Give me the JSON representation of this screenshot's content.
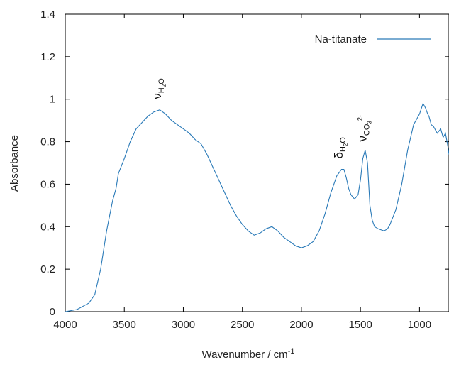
{
  "chart_data": {
    "type": "line",
    "xlabel": "Wavenumber / cm",
    "xlabel_sup": "-1",
    "ylabel": "Absorbance",
    "xlim": [
      4000,
      750
    ],
    "ylim": [
      0,
      1.4
    ],
    "x_reversed": true,
    "x_ticks": [
      4000,
      3500,
      3000,
      2500,
      2000,
      1500,
      1000
    ],
    "x_tick_labels": [
      "4000",
      "3500",
      "3000",
      "2500",
      "2000",
      "1500",
      "1000"
    ],
    "y_ticks": [
      0,
      0.2,
      0.4,
      0.6,
      0.8,
      1.0,
      1.2,
      1.4
    ],
    "y_tick_labels": [
      "0",
      "0.2",
      "0.4",
      "0.6",
      "0.8",
      "1",
      "1.2",
      "1.4"
    ],
    "grid": false,
    "legend_position": "top-right",
    "series_color": "#2a7ab8",
    "series": [
      {
        "name": "Na-titanate",
        "x": [
          4000,
          3900,
          3800,
          3750,
          3700,
          3650,
          3600,
          3570,
          3550,
          3500,
          3450,
          3400,
          3350,
          3300,
          3250,
          3200,
          3150,
          3100,
          3050,
          3000,
          2950,
          2900,
          2850,
          2800,
          2750,
          2700,
          2650,
          2600,
          2550,
          2500,
          2450,
          2400,
          2350,
          2300,
          2250,
          2200,
          2150,
          2100,
          2050,
          2000,
          1950,
          1900,
          1850,
          1800,
          1750,
          1700,
          1660,
          1640,
          1620,
          1600,
          1580,
          1550,
          1520,
          1500,
          1480,
          1460,
          1440,
          1430,
          1420,
          1400,
          1380,
          1350,
          1300,
          1270,
          1250,
          1200,
          1150,
          1100,
          1050,
          1000,
          970,
          950,
          930,
          920,
          900,
          880,
          850,
          820,
          800,
          780,
          760,
          750
        ],
        "y": [
          0.0,
          0.01,
          0.04,
          0.08,
          0.2,
          0.38,
          0.52,
          0.58,
          0.65,
          0.72,
          0.8,
          0.86,
          0.89,
          0.92,
          0.94,
          0.95,
          0.93,
          0.9,
          0.88,
          0.86,
          0.84,
          0.81,
          0.79,
          0.74,
          0.68,
          0.62,
          0.56,
          0.5,
          0.45,
          0.41,
          0.38,
          0.36,
          0.37,
          0.39,
          0.4,
          0.38,
          0.35,
          0.33,
          0.31,
          0.3,
          0.31,
          0.33,
          0.38,
          0.46,
          0.56,
          0.64,
          0.67,
          0.67,
          0.63,
          0.58,
          0.55,
          0.53,
          0.55,
          0.62,
          0.72,
          0.76,
          0.7,
          0.6,
          0.5,
          0.43,
          0.4,
          0.39,
          0.38,
          0.39,
          0.41,
          0.48,
          0.6,
          0.76,
          0.88,
          0.93,
          0.98,
          0.96,
          0.93,
          0.92,
          0.88,
          0.87,
          0.84,
          0.86,
          0.82,
          0.84,
          0.78,
          0.74
        ]
      }
    ],
    "annotations": [
      {
        "symbol": "ν",
        "sub": "H",
        "sub2": "2",
        "sub3": "O",
        "x": 3190,
        "y": 1.0
      },
      {
        "symbol": "δ",
        "sub": "H",
        "sub2": "2",
        "sub3": "O",
        "x": 1650,
        "y": 0.72
      },
      {
        "symbol": "ν",
        "sub": "CO",
        "sub2": "3",
        "sup": "2-",
        "x": 1450,
        "y": 0.8
      }
    ]
  }
}
